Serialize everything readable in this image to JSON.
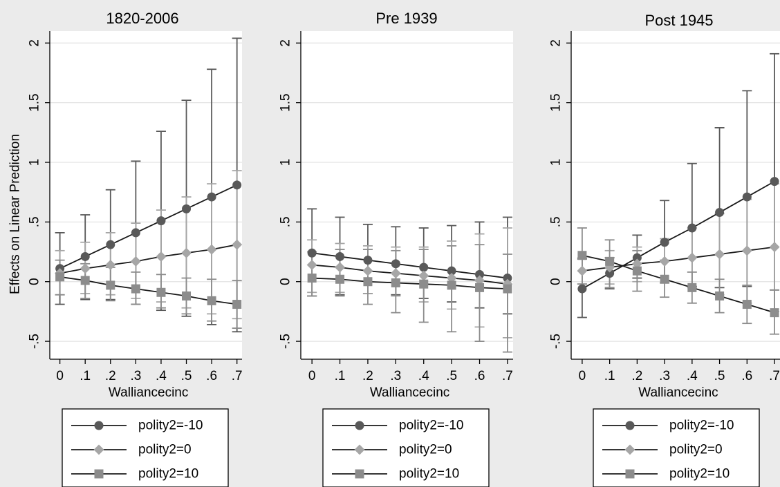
{
  "chart_data": [
    {
      "type": "line",
      "title": "1820-2006",
      "xlabel": "Walliancecinc",
      "ylabel": "Effects on Linear Prediction",
      "x": [
        0,
        0.1,
        0.2,
        0.3,
        0.4,
        0.5,
        0.6,
        0.7
      ],
      "x_tick_labels": [
        "0",
        ".1",
        ".2",
        ".3",
        ".4",
        ".5",
        ".6",
        ".7"
      ],
      "y_ticks": [
        -0.5,
        0,
        0.5,
        1,
        1.5,
        2
      ],
      "y_tick_labels": [
        "-.5",
        "0",
        ".5",
        "1",
        "1.5",
        "2"
      ],
      "ylim": [
        -0.65,
        2.1
      ],
      "xlim": [
        -0.04,
        0.72
      ],
      "grid": true,
      "legend_position": "bottom",
      "series": [
        {
          "name": "polity2=-10",
          "marker": "circle",
          "color": "#595959",
          "values": [
            0.11,
            0.21,
            0.31,
            0.41,
            0.51,
            0.61,
            0.71,
            0.81
          ],
          "ci_low": [
            -0.19,
            -0.15,
            -0.15,
            -0.19,
            -0.24,
            -0.29,
            -0.36,
            -0.42
          ],
          "ci_high": [
            0.41,
            0.56,
            0.77,
            1.01,
            1.26,
            1.52,
            1.78,
            2.04
          ]
        },
        {
          "name": "polity2=0",
          "marker": "diamond",
          "color": "#a6a6a6",
          "values": [
            0.07,
            0.11,
            0.14,
            0.17,
            0.21,
            0.24,
            0.27,
            0.31
          ],
          "ci_low": [
            -0.11,
            -0.1,
            -0.11,
            -0.14,
            -0.17,
            -0.22,
            -0.27,
            -0.31
          ],
          "ci_high": [
            0.26,
            0.33,
            0.41,
            0.49,
            0.6,
            0.71,
            0.82,
            0.93
          ]
        },
        {
          "name": "polity2=10",
          "marker": "square",
          "color": "#8c8c8c",
          "values": [
            0.04,
            0.01,
            -0.03,
            -0.06,
            -0.09,
            -0.12,
            -0.16,
            -0.19
          ],
          "ci_low": [
            -0.11,
            -0.14,
            -0.16,
            -0.19,
            -0.22,
            -0.27,
            -0.33,
            -0.39
          ],
          "ci_high": [
            0.18,
            0.15,
            0.12,
            0.08,
            0.06,
            0.03,
            0.02,
            0.01
          ]
        }
      ]
    },
    {
      "type": "line",
      "title": "Pre 1939",
      "xlabel": "Walliancecinc",
      "ylabel": "",
      "x": [
        0,
        0.1,
        0.2,
        0.3,
        0.4,
        0.5,
        0.6,
        0.7
      ],
      "x_tick_labels": [
        "0",
        ".1",
        ".2",
        ".3",
        ".4",
        ".5",
        ".6",
        ".7"
      ],
      "y_ticks": [
        -0.5,
        0,
        0.5,
        1,
        1.5,
        2
      ],
      "y_tick_labels": [
        "-.5",
        "0",
        ".5",
        "1",
        "1.5",
        "2"
      ],
      "ylim": [
        -0.65,
        2.1
      ],
      "xlim": [
        -0.04,
        0.72
      ],
      "grid": true,
      "legend_position": "bottom",
      "series": [
        {
          "name": "polity2=-10",
          "marker": "circle",
          "color": "#595959",
          "values": [
            0.24,
            0.21,
            0.18,
            0.15,
            0.12,
            0.09,
            0.06,
            0.03
          ],
          "ci_low": [
            -0.12,
            -0.11,
            -0.1,
            -0.11,
            -0.14,
            -0.17,
            -0.22,
            -0.27
          ],
          "ci_high": [
            0.61,
            0.54,
            0.48,
            0.46,
            0.45,
            0.47,
            0.5,
            0.54
          ]
        },
        {
          "name": "polity2=0",
          "marker": "diamond",
          "color": "#a6a6a6",
          "values": [
            0.14,
            0.12,
            0.09,
            0.07,
            0.05,
            0.03,
            0.01,
            -0.02
          ],
          "ci_low": [
            -0.09,
            -0.09,
            -0.1,
            -0.12,
            -0.17,
            -0.23,
            -0.38,
            -0.47
          ],
          "ci_high": [
            0.35,
            0.32,
            0.3,
            0.29,
            0.29,
            0.34,
            0.4,
            0.45
          ]
        },
        {
          "name": "polity2=10",
          "marker": "square",
          "color": "#8c8c8c",
          "values": [
            0.03,
            0.02,
            0.0,
            -0.01,
            -0.02,
            -0.03,
            -0.05,
            -0.06
          ],
          "ci_low": [
            -0.12,
            -0.12,
            -0.19,
            -0.26,
            -0.34,
            -0.42,
            -0.5,
            -0.59
          ],
          "ci_high": [
            0.25,
            0.27,
            0.27,
            0.26,
            0.27,
            0.3,
            0.31,
            0.23
          ]
        }
      ]
    },
    {
      "type": "line",
      "title": "Post 1945",
      "xlabel": "Walliancecinc",
      "ylabel": "",
      "x": [
        0,
        0.1,
        0.2,
        0.3,
        0.4,
        0.5,
        0.6,
        0.7
      ],
      "x_tick_labels": [
        "0",
        ".1",
        ".2",
        ".3",
        ".4",
        ".5",
        ".6",
        ".7"
      ],
      "y_ticks": [
        -0.5,
        0,
        0.5,
        1,
        1.5,
        2
      ],
      "y_tick_labels": [
        "-.5",
        "0",
        ".5",
        "1",
        "1.5",
        "2"
      ],
      "ylim": [
        -0.65,
        2.1
      ],
      "xlim": [
        -0.04,
        0.72
      ],
      "grid": true,
      "legend_position": "bottom",
      "series": [
        {
          "name": "polity2=-10",
          "marker": "circle",
          "color": "#595959",
          "values": [
            -0.06,
            0.07,
            0.2,
            0.33,
            0.45,
            0.58,
            0.71,
            0.84
          ],
          "ci_low": [
            -0.3,
            -0.06,
            0.03,
            -0.01,
            -0.04,
            -0.05,
            -0.04,
            -0.07
          ],
          "ci_high": [
            0.19,
            0.2,
            0.39,
            0.68,
            0.99,
            1.29,
            1.6,
            1.91
          ]
        },
        {
          "name": "polity2=0",
          "marker": "diamond",
          "color": "#a6a6a6",
          "values": [
            0.09,
            0.12,
            0.15,
            0.17,
            0.2,
            0.23,
            0.26,
            0.29
          ],
          "ci_low": [
            -0.02,
            -0.02,
            0.0,
            -0.01,
            -0.05,
            -0.11,
            -0.18,
            -0.25
          ],
          "ci_high": [
            0.2,
            0.26,
            0.29,
            0.36,
            0.45,
            0.57,
            0.69,
            0.82
          ]
        },
        {
          "name": "polity2=10",
          "marker": "square",
          "color": "#8c8c8c",
          "values": [
            0.22,
            0.17,
            0.09,
            0.02,
            -0.05,
            -0.12,
            -0.19,
            -0.26
          ],
          "ci_low": [
            -0.02,
            -0.05,
            -0.08,
            -0.13,
            -0.18,
            -0.26,
            -0.35,
            -0.44
          ],
          "ci_high": [
            0.45,
            0.35,
            0.26,
            0.18,
            0.08,
            0.02,
            -0.03,
            -0.07
          ]
        }
      ]
    }
  ]
}
